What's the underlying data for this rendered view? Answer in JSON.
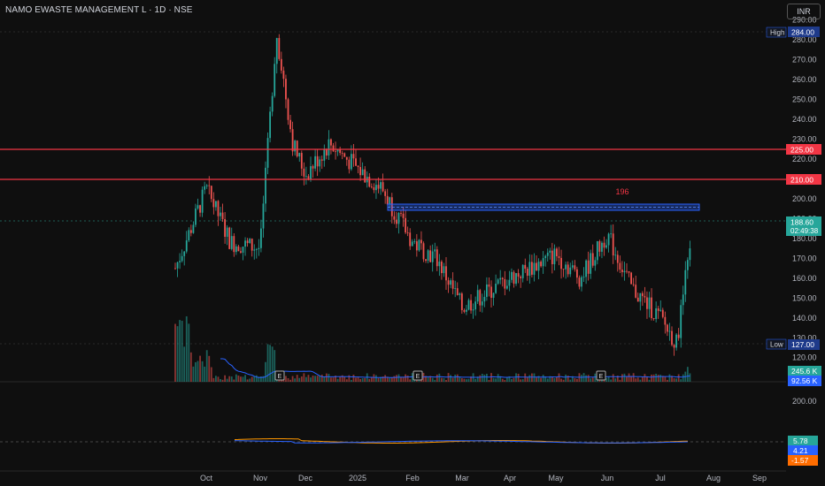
{
  "header": {
    "title": "NAMO EWASTE MANAGEMENT L · 1D · NSE",
    "currency": "INR"
  },
  "price_labels": {
    "high_tag": "High",
    "high_value": "284.00",
    "low_tag": "Low",
    "low_value": "127.00",
    "last_price": "188.60",
    "countdown": "02:49:38",
    "resistance_upper": "225.00",
    "resistance_lower": "210.00",
    "zone_label": "196"
  },
  "volume_labels": {
    "volume": "245.6 K",
    "volume_ma": "92.56 K"
  },
  "indicator_labels": {
    "value1": "5.78",
    "value2": "4.21",
    "value3": "-1.57"
  },
  "earnings_marker": "E",
  "colors": {
    "up": "#26a69a",
    "down": "#ef5350",
    "line": "#f23645",
    "zone": "#2962ff",
    "ma": "#2962ff",
    "last_price": "#26a69a",
    "background": "#0f0f0f"
  },
  "chart_data": {
    "type": "candlestick",
    "title": "NAMO EWASTE MANAGEMENT L · 1D · NSE",
    "price_axis": {
      "ticks": [
        120,
        130,
        140,
        150,
        160,
        170,
        180,
        190,
        200,
        210,
        220,
        230,
        240,
        250,
        260,
        270,
        280,
        290
      ],
      "range": [
        114,
        291
      ]
    },
    "volume_axis": {
      "ticks": [
        200.0
      ]
    },
    "time_axis": {
      "labels": [
        "Oct",
        "Nov",
        "Dec",
        "2025",
        "Feb",
        "Mar",
        "Apr",
        "May",
        "Jun",
        "Jul",
        "Aug",
        "Sep"
      ]
    },
    "horizontal_lines": [
      225,
      210
    ],
    "zone": {
      "low": 194,
      "high": 197,
      "label": "196"
    },
    "high": 284,
    "low": 127,
    "last": 188.6,
    "earnings_months": [
      "Nov",
      "Feb",
      "Jun"
    ],
    "price_path": [
      [
        "Sep",
        165
      ],
      [
        "Oct",
        205
      ],
      [
        "Oct",
        178
      ],
      [
        "Nov",
        175
      ],
      [
        "Nov",
        284
      ],
      [
        "Nov",
        228
      ],
      [
        "Dec",
        212
      ],
      [
        "Dec",
        228
      ],
      [
        "2025",
        215
      ],
      [
        "2025",
        205
      ],
      [
        "Feb",
        178
      ],
      [
        "Feb",
        170
      ],
      [
        "Mar",
        145
      ],
      [
        "Apr",
        160
      ],
      [
        "May",
        172
      ],
      [
        "May",
        160
      ],
      [
        "Jun",
        182
      ],
      [
        "Jun",
        155
      ],
      [
        "Jul",
        140
      ],
      [
        "Jul",
        127
      ],
      [
        "Jul",
        188.6
      ]
    ]
  }
}
